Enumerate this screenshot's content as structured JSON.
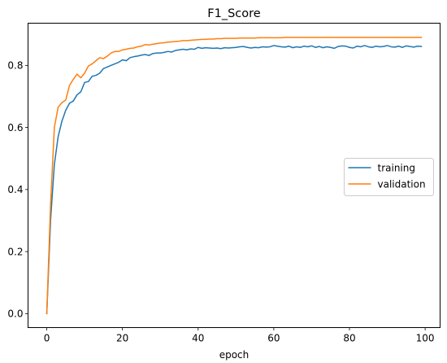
{
  "chart_data": {
    "type": "line",
    "title": "F1_Score",
    "xlabel": "epoch",
    "ylabel": "",
    "xlim": [
      -4.95,
      103.95
    ],
    "ylim": [
      -0.045,
      0.936
    ],
    "xticks": [
      0,
      20,
      40,
      60,
      80,
      100
    ],
    "yticks": [
      0.0,
      0.2,
      0.4,
      0.6,
      0.8
    ],
    "xtick_labels": [
      "0",
      "20",
      "40",
      "60",
      "80",
      "100"
    ],
    "ytick_labels": [
      "0.0",
      "0.2",
      "0.4",
      "0.6",
      "0.8"
    ],
    "grid": false,
    "legend_position": "center-right",
    "series": [
      {
        "name": "training",
        "color": "#1f77b4",
        "x": [
          0,
          1,
          2,
          3,
          4,
          5,
          6,
          7,
          8,
          9,
          10,
          11,
          12,
          13,
          14,
          15,
          16,
          17,
          18,
          19,
          20,
          21,
          22,
          23,
          24,
          25,
          26,
          27,
          28,
          29,
          30,
          31,
          32,
          33,
          34,
          35,
          36,
          37,
          38,
          39,
          40,
          41,
          42,
          43,
          44,
          45,
          46,
          47,
          48,
          49,
          50,
          51,
          52,
          53,
          54,
          55,
          56,
          57,
          58,
          59,
          60,
          61,
          62,
          63,
          64,
          65,
          66,
          67,
          68,
          69,
          70,
          71,
          72,
          73,
          74,
          75,
          76,
          77,
          78,
          79,
          80,
          81,
          82,
          83,
          84,
          85,
          86,
          87,
          88,
          89,
          90,
          91,
          92,
          93,
          94,
          95,
          96,
          97,
          98,
          99
        ],
        "y": [
          0.0,
          0.3,
          0.48,
          0.57,
          0.62,
          0.655,
          0.678,
          0.685,
          0.705,
          0.715,
          0.745,
          0.748,
          0.765,
          0.768,
          0.775,
          0.79,
          0.795,
          0.8,
          0.805,
          0.81,
          0.818,
          0.815,
          0.825,
          0.828,
          0.83,
          0.833,
          0.835,
          0.832,
          0.838,
          0.84,
          0.84,
          0.842,
          0.845,
          0.843,
          0.848,
          0.85,
          0.852,
          0.85,
          0.853,
          0.852,
          0.858,
          0.855,
          0.857,
          0.856,
          0.855,
          0.856,
          0.854,
          0.857,
          0.856,
          0.857,
          0.858,
          0.86,
          0.861,
          0.858,
          0.856,
          0.858,
          0.857,
          0.86,
          0.859,
          0.86,
          0.864,
          0.862,
          0.86,
          0.859,
          0.862,
          0.857,
          0.86,
          0.858,
          0.862,
          0.86,
          0.863,
          0.858,
          0.861,
          0.857,
          0.86,
          0.858,
          0.855,
          0.861,
          0.863,
          0.862,
          0.858,
          0.856,
          0.862,
          0.86,
          0.864,
          0.86,
          0.858,
          0.862,
          0.86,
          0.861,
          0.864,
          0.86,
          0.859,
          0.862,
          0.858,
          0.863,
          0.861,
          0.859,
          0.862,
          0.861
        ]
      },
      {
        "name": "validation",
        "color": "#ff7f0e",
        "x": [
          0,
          1,
          2,
          3,
          4,
          5,
          6,
          7,
          8,
          9,
          10,
          11,
          12,
          13,
          14,
          15,
          16,
          17,
          18,
          19,
          20,
          21,
          22,
          23,
          24,
          25,
          26,
          27,
          28,
          29,
          30,
          31,
          32,
          33,
          34,
          35,
          36,
          37,
          38,
          39,
          40,
          41,
          42,
          43,
          44,
          45,
          46,
          47,
          48,
          49,
          50,
          51,
          52,
          53,
          54,
          55,
          56,
          57,
          58,
          59,
          60,
          61,
          62,
          63,
          64,
          65,
          66,
          67,
          68,
          69,
          70,
          71,
          72,
          73,
          74,
          75,
          76,
          77,
          78,
          79,
          80,
          81,
          82,
          83,
          84,
          85,
          86,
          87,
          88,
          89,
          90,
          91,
          92,
          93,
          94,
          95,
          96,
          97,
          98,
          99
        ],
        "y": [
          0.0,
          0.35,
          0.6,
          0.665,
          0.68,
          0.688,
          0.735,
          0.755,
          0.772,
          0.76,
          0.775,
          0.798,
          0.805,
          0.815,
          0.825,
          0.822,
          0.83,
          0.84,
          0.845,
          0.845,
          0.85,
          0.852,
          0.855,
          0.856,
          0.86,
          0.862,
          0.867,
          0.866,
          0.868,
          0.87,
          0.872,
          0.873,
          0.875,
          0.876,
          0.877,
          0.878,
          0.88,
          0.88,
          0.881,
          0.882,
          0.883,
          0.884,
          0.884,
          0.885,
          0.885,
          0.886,
          0.886,
          0.887,
          0.887,
          0.887,
          0.887,
          0.888,
          0.888,
          0.888,
          0.888,
          0.888,
          0.889,
          0.889,
          0.889,
          0.889,
          0.889,
          0.889,
          0.889,
          0.89,
          0.89,
          0.89,
          0.89,
          0.89,
          0.89,
          0.89,
          0.89,
          0.89,
          0.89,
          0.89,
          0.89,
          0.89,
          0.89,
          0.89,
          0.89,
          0.89,
          0.89,
          0.89,
          0.89,
          0.89,
          0.89,
          0.89,
          0.89,
          0.89,
          0.89,
          0.89,
          0.89,
          0.89,
          0.89,
          0.89,
          0.89,
          0.89,
          0.89,
          0.89,
          0.89,
          0.89
        ]
      }
    ]
  }
}
